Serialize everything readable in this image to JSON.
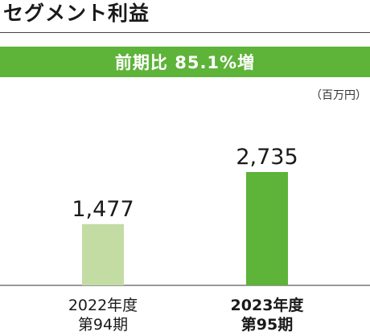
{
  "header": {
    "title": "セグメント利益",
    "banner": "前期比 85.1%増",
    "unit": "（百万円）"
  },
  "colors": {
    "accent": "#5eb339",
    "bar_previous": "#c2dca4",
    "bar_current": "#5eb339"
  },
  "chart_data": {
    "type": "bar",
    "title": "セグメント利益",
    "unit": "（百万円）",
    "categories": [
      "2022年度 第94期",
      "2023年度 第95期"
    ],
    "values": [
      1477,
      2735
    ],
    "value_labels": [
      "1,477",
      "2,735"
    ],
    "category_lines": [
      [
        "2022年度",
        "第94期"
      ],
      [
        "2023年度",
        "第95期"
      ]
    ],
    "ylim": [
      0,
      3000
    ],
    "grid": false,
    "legend": "none"
  }
}
